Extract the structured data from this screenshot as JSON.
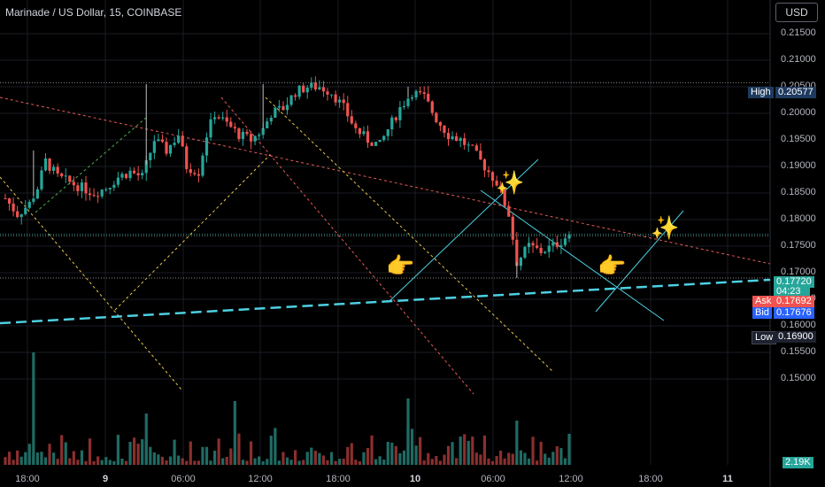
{
  "header": {
    "title": "Marinade / US Dollar, 15, COINBASE",
    "currency": "USD"
  },
  "colors": {
    "up": "#26a69a",
    "down": "#ef5350",
    "cyan": "#4dd0e1",
    "red_line": "#e85a5a",
    "yellow_line": "#e6c84a",
    "green_line": "#4caf50"
  },
  "price_labels": {
    "high_label": "High",
    "high_value": "0.20577",
    "last_value": "0.17720",
    "countdown": "04:23",
    "ask_label": "Ask",
    "ask_value": "0.17692",
    "bid_label": "Bid",
    "bid_value": "0.17676",
    "low_label": "Low",
    "low_value": "0.16900",
    "volume_value": "2.19K"
  },
  "icons": [
    "pointing-hand-icon",
    "pointing-hand-icon",
    "sparkles-icon",
    "sparkles-icon"
  ],
  "chart_data": {
    "type": "candlestick",
    "title": "Marinade / US Dollar, 15, COINBASE",
    "y_ticks": [
      "0.21500",
      "0.21000",
      "0.20500",
      "0.20000",
      "0.19500",
      "0.19000",
      "0.18500",
      "0.18000",
      "0.17500",
      "0.17000",
      "0.16500",
      "0.16000",
      "0.15500",
      "0.15000"
    ],
    "x_ticks": [
      "18:00",
      "9",
      "06:00",
      "12:00",
      "18:00",
      "10",
      "06:00",
      "12:00",
      "18:00",
      "11"
    ],
    "ylim": [
      0.1465,
      0.2185
    ],
    "grid": true,
    "high": 0.20577,
    "low": 0.169,
    "last": 0.1772,
    "ask": 0.17692,
    "bid": 0.17676,
    "close_path": [
      [
        0,
        0.184
      ],
      [
        3,
        0.181
      ],
      [
        6,
        0.183
      ],
      [
        8,
        0.186
      ],
      [
        10,
        0.191
      ],
      [
        13,
        0.188
      ],
      [
        16,
        0.187
      ],
      [
        19,
        0.186
      ],
      [
        22,
        0.185
      ],
      [
        25,
        0.186
      ],
      [
        28,
        0.188
      ],
      [
        31,
        0.189
      ],
      [
        34,
        0.188
      ],
      [
        37,
        0.195
      ],
      [
        40,
        0.193
      ],
      [
        43,
        0.196
      ],
      [
        45,
        0.19
      ],
      [
        48,
        0.189
      ],
      [
        50,
        0.196
      ],
      [
        52,
        0.2
      ],
      [
        55,
        0.198
      ],
      [
        58,
        0.196
      ],
      [
        61,
        0.195
      ],
      [
        64,
        0.197
      ],
      [
        66,
        0.2
      ],
      [
        69,
        0.201
      ],
      [
        72,
        0.204
      ],
      [
        75,
        0.205
      ],
      [
        78,
        0.205
      ],
      [
        81,
        0.204
      ],
      [
        84,
        0.201
      ],
      [
        87,
        0.197
      ],
      [
        90,
        0.195
      ],
      [
        93,
        0.194
      ],
      [
        95,
        0.197
      ],
      [
        98,
        0.201
      ],
      [
        101,
        0.204
      ],
      [
        104,
        0.203
      ],
      [
        107,
        0.199
      ],
      [
        110,
        0.196
      ],
      [
        113,
        0.195
      ],
      [
        116,
        0.193
      ],
      [
        119,
        0.19
      ],
      [
        122,
        0.187
      ],
      [
        125,
        0.181
      ],
      [
        127,
        0.172
      ],
      [
        130,
        0.175
      ],
      [
        133,
        0.174
      ],
      [
        136,
        0.175
      ],
      [
        138,
        0.176
      ],
      [
        140,
        0.1772
      ]
    ],
    "volume_ylim": [
      0,
      1.0
    ]
  }
}
